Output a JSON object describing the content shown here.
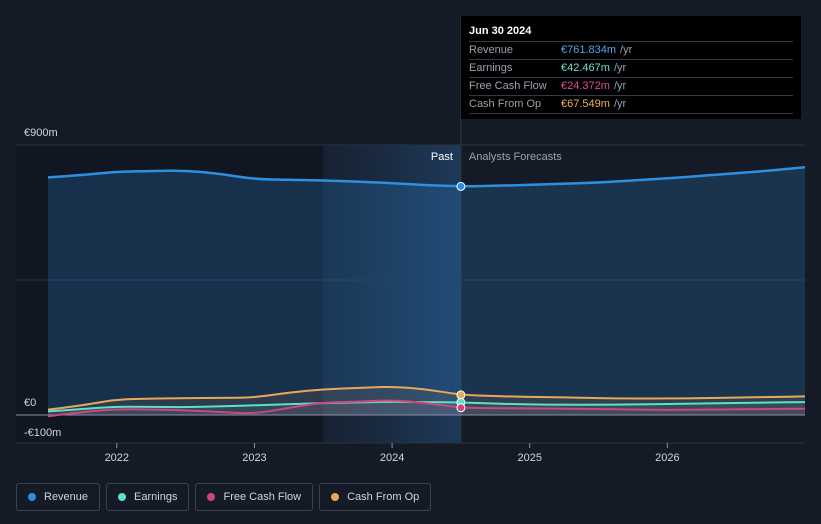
{
  "tooltip": {
    "date": "Jun 30 2024",
    "rows": [
      {
        "label": "Revenue",
        "value": "€761.834m",
        "unit": "/yr",
        "color": "#4ea8f0"
      },
      {
        "label": "Earnings",
        "value": "€42.467m",
        "unit": "/yr",
        "color": "#6de0c8"
      },
      {
        "label": "Free Cash Flow",
        "value": "€24.372m",
        "unit": "/yr",
        "color": "#e0508e"
      },
      {
        "label": "Cash From Op",
        "value": "€67.549m",
        "unit": "/yr",
        "color": "#f0b060"
      }
    ]
  },
  "legend": [
    {
      "label": "Revenue",
      "color": "#2d8fe0"
    },
    {
      "label": "Earnings",
      "color": "#5ee0c8"
    },
    {
      "label": "Free Cash Flow",
      "color": "#d0457e"
    },
    {
      "label": "Cash From Op",
      "color": "#e8a85a"
    }
  ],
  "chart_data": {
    "type": "line",
    "ylim": [
      -100,
      900
    ],
    "xlim": [
      2021.5,
      2027.0
    ],
    "y_ticks": [
      {
        "value": 900,
        "label": "€900m"
      },
      {
        "value": 0,
        "label": "€0"
      },
      {
        "value": -100,
        "label": "-€100m"
      }
    ],
    "x_ticks": [
      {
        "value": 2022,
        "label": "2022"
      },
      {
        "value": 2023,
        "label": "2023"
      },
      {
        "value": 2024,
        "label": "2024"
      },
      {
        "value": 2025,
        "label": "2025"
      },
      {
        "value": 2026,
        "label": "2026"
      }
    ],
    "past_label": "Past",
    "forecast_label": "Analysts Forecasts",
    "past_end": 2024.5,
    "highlight_start": 2023.5,
    "grid": true,
    "series": [
      {
        "name": "Revenue",
        "color": "#2d8fe0",
        "fill": true,
        "points": [
          [
            2021.5,
            792
          ],
          [
            2021.75,
            800
          ],
          [
            2022.0,
            811
          ],
          [
            2022.25,
            813
          ],
          [
            2022.5,
            815
          ],
          [
            2022.75,
            804
          ],
          [
            2023.0,
            786
          ],
          [
            2023.25,
            784
          ],
          [
            2023.5,
            782
          ],
          [
            2023.75,
            778
          ],
          [
            2024.0,
            773
          ],
          [
            2024.25,
            766
          ],
          [
            2024.5,
            762
          ],
          [
            2024.75,
            764
          ],
          [
            2025.0,
            767
          ],
          [
            2025.25,
            771
          ],
          [
            2025.5,
            775
          ],
          [
            2025.75,
            782
          ],
          [
            2026.0,
            789
          ],
          [
            2026.25,
            797
          ],
          [
            2026.5,
            806
          ],
          [
            2026.75,
            815
          ],
          [
            2027.0,
            826
          ]
        ]
      },
      {
        "name": "Cash From Op",
        "color": "#e8a85a",
        "fill": true,
        "points": [
          [
            2021.5,
            18
          ],
          [
            2021.75,
            32
          ],
          [
            2022.0,
            52
          ],
          [
            2022.25,
            55
          ],
          [
            2022.5,
            56
          ],
          [
            2022.75,
            57
          ],
          [
            2023.0,
            58
          ],
          [
            2023.25,
            75
          ],
          [
            2023.5,
            86
          ],
          [
            2023.75,
            90
          ],
          [
            2024.0,
            95
          ],
          [
            2024.25,
            86
          ],
          [
            2024.5,
            67
          ],
          [
            2024.75,
            63
          ],
          [
            2025.0,
            60
          ],
          [
            2025.25,
            59
          ],
          [
            2025.5,
            56
          ],
          [
            2025.75,
            55
          ],
          [
            2026.0,
            55
          ],
          [
            2026.25,
            56
          ],
          [
            2026.5,
            58
          ],
          [
            2026.75,
            60
          ],
          [
            2027.0,
            62
          ]
        ]
      },
      {
        "name": "Earnings",
        "color": "#5ee0c8",
        "fill": true,
        "points": [
          [
            2021.5,
            12
          ],
          [
            2021.75,
            20
          ],
          [
            2022.0,
            28
          ],
          [
            2022.25,
            27
          ],
          [
            2022.5,
            26
          ],
          [
            2022.75,
            29
          ],
          [
            2023.0,
            32
          ],
          [
            2023.25,
            36
          ],
          [
            2023.5,
            40
          ],
          [
            2023.75,
            42
          ],
          [
            2024.0,
            44
          ],
          [
            2024.25,
            43
          ],
          [
            2024.5,
            42
          ],
          [
            2024.75,
            38
          ],
          [
            2025.0,
            35
          ],
          [
            2025.25,
            34
          ],
          [
            2025.5,
            34
          ],
          [
            2025.75,
            35
          ],
          [
            2026.0,
            37
          ],
          [
            2026.25,
            38
          ],
          [
            2026.5,
            40
          ],
          [
            2026.75,
            42
          ],
          [
            2027.0,
            43
          ]
        ]
      },
      {
        "name": "Free Cash Flow",
        "color": "#d0457e",
        "fill": true,
        "points": [
          [
            2021.5,
            -4
          ],
          [
            2021.75,
            10
          ],
          [
            2022.0,
            20
          ],
          [
            2022.25,
            18
          ],
          [
            2022.5,
            16
          ],
          [
            2022.75,
            10
          ],
          [
            2023.0,
            4
          ],
          [
            2023.25,
            24
          ],
          [
            2023.5,
            42
          ],
          [
            2023.75,
            44
          ],
          [
            2024.0,
            50
          ],
          [
            2024.25,
            40
          ],
          [
            2024.5,
            24
          ],
          [
            2024.75,
            23
          ],
          [
            2025.0,
            22
          ],
          [
            2025.25,
            21
          ],
          [
            2025.5,
            20
          ],
          [
            2025.75,
            18
          ],
          [
            2026.0,
            17
          ],
          [
            2026.25,
            18
          ],
          [
            2026.5,
            19
          ],
          [
            2026.75,
            20
          ],
          [
            2027.0,
            21
          ]
        ]
      }
    ]
  }
}
